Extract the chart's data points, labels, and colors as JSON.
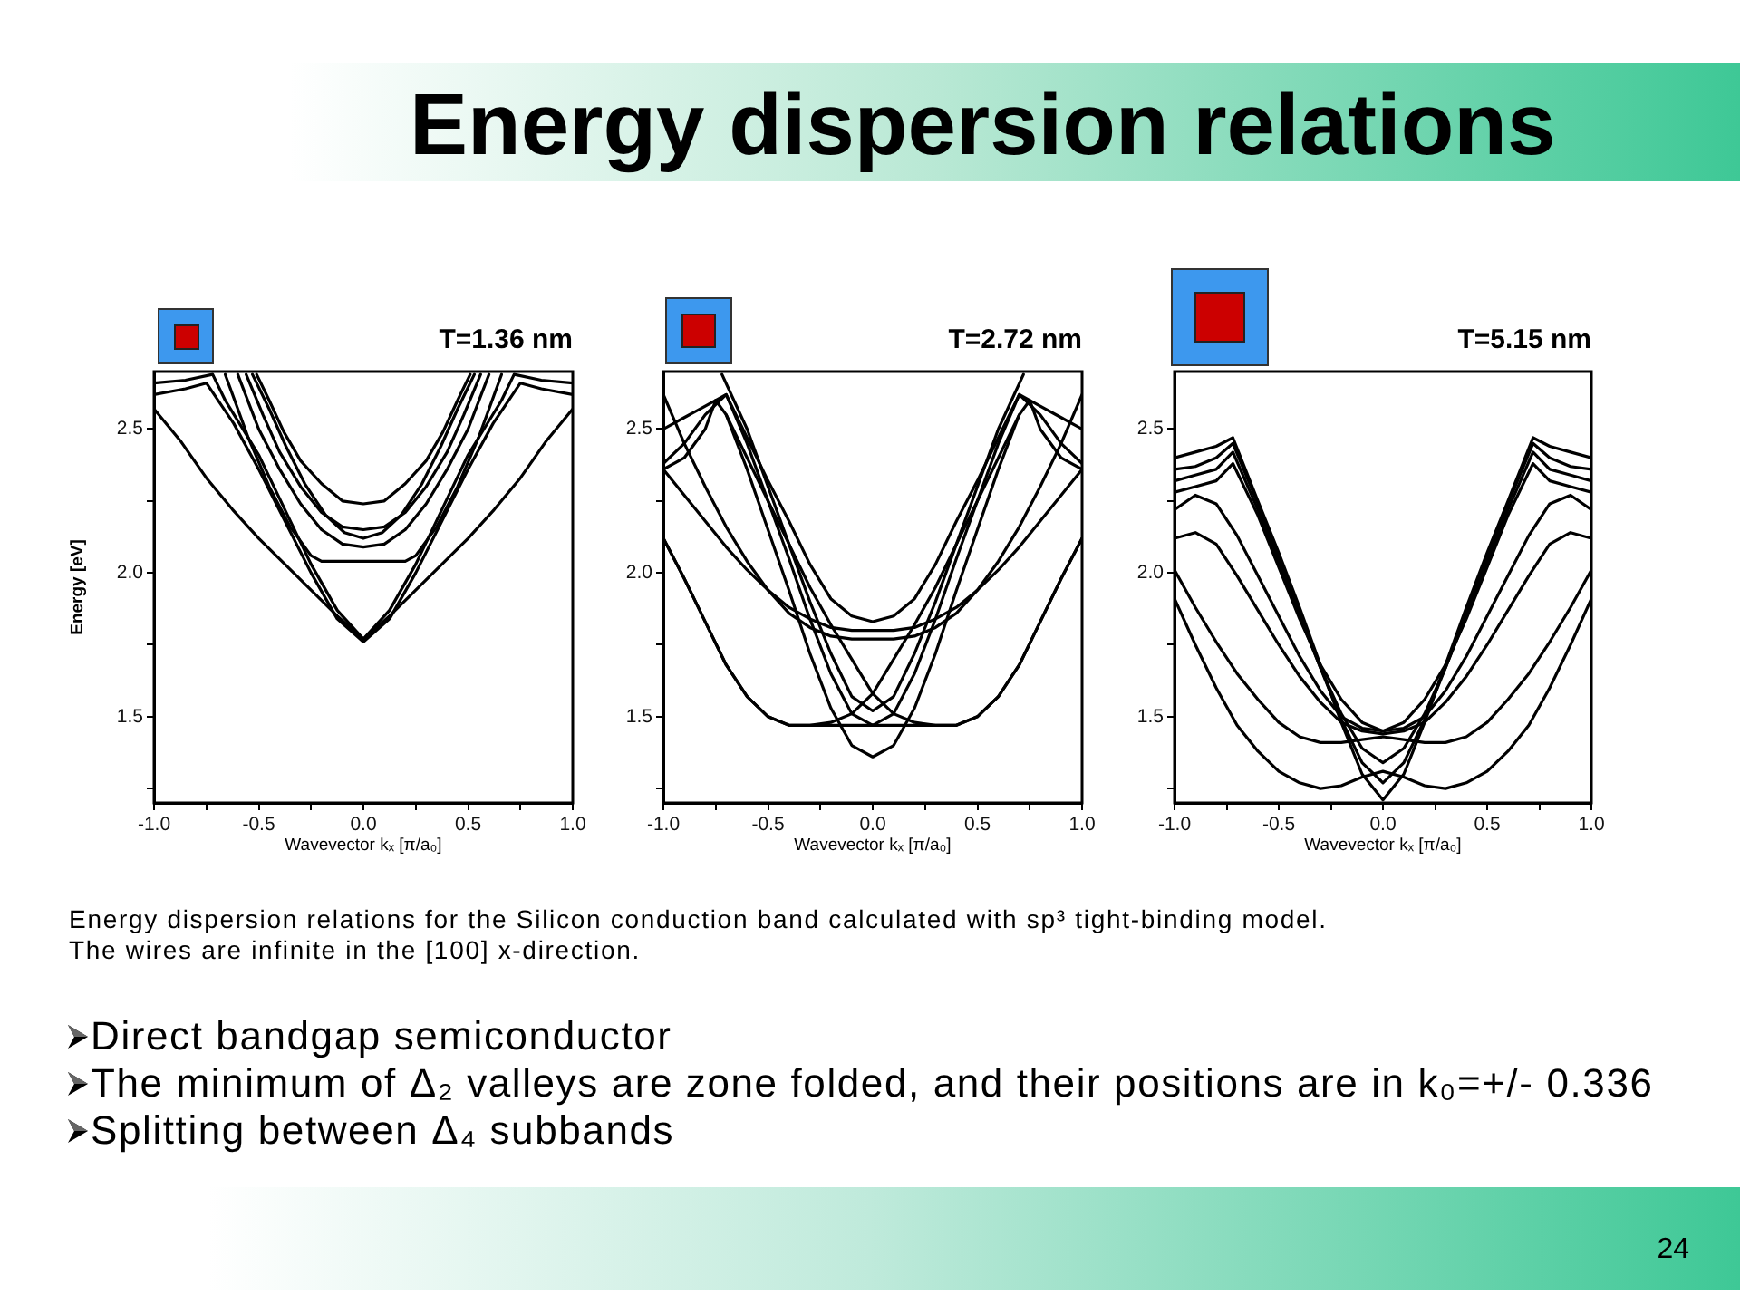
{
  "chart_data": [
    {
      "type": "line",
      "title": "T=1.36 nm",
      "xlabel": "Wavevector kₓ [π/a₀]",
      "ylabel": "Energy [eV]",
      "annotations": [
        "Energy dispersion relations",
        "Energy dispersion relations for the Silicon conduction band calculated with sp³ tight-binding model.",
        "The wires are infinite in the [100] x-direction.",
        "Direct bandgap semiconductor",
        "The minimum of Δ₂ valleys are zone folded, and their positions are in k₀=+/- 0.336",
        "Splitting between Δ₄ subbands",
        "24"
      ],
      "xlim": [
        -1,
        1
      ],
      "ylim": [
        1.2,
        2.7
      ],
      "xticks": [
        {
          "value": -1,
          "label": "-1.0"
        },
        {
          "value": -0.75,
          "label": null
        },
        {
          "value": -0.5,
          "label": "-0.5"
        },
        {
          "value": -0.25,
          "label": null
        },
        {
          "value": 0,
          "label": "0.0"
        },
        {
          "value": 0.25,
          "label": null
        },
        {
          "value": 0.5,
          "label": "0.5"
        },
        {
          "value": 0.75,
          "label": null
        },
        {
          "value": 1,
          "label": "1.0"
        }
      ],
      "yticks": [
        {
          "value": 1.25,
          "label": null
        },
        {
          "value": 1.5,
          "label": "1.5"
        },
        {
          "value": 1.75,
          "label": null
        },
        {
          "value": 2,
          "label": "2.0"
        },
        {
          "value": 2.25,
          "label": null
        },
        {
          "value": 2.5,
          "label": "2.5"
        }
      ],
      "grid": false,
      "legend": false,
      "marker": "none",
      "series": [
        {
          "color": "#000000",
          "x": [
            -1,
            -0.875,
            -0.75,
            -0.625,
            -0.5,
            -0.375,
            -0.25,
            -0.125,
            0,
            0.125,
            0.25,
            0.375,
            0.5,
            0.625,
            0.75,
            0.875,
            1
          ],
          "values": [
            2.57,
            2.46,
            2.33,
            2.22,
            2.12,
            2.03,
            1.94,
            1.85,
            1.77,
            1.85,
            1.94,
            2.03,
            2.12,
            2.22,
            2.33,
            2.46,
            2.57
          ]
        },
        {
          "color": "#000000",
          "x": [
            -1,
            -0.85,
            -0.72,
            -0.66,
            -0.5,
            -0.375,
            -0.25,
            -0.125,
            0,
            0.125,
            0.25,
            0.375,
            0.5,
            0.66,
            0.72,
            0.85,
            1
          ],
          "values": [
            2.66,
            2.67,
            2.69,
            2.6,
            2.41,
            2.22,
            2.03,
            1.87,
            1.77,
            1.87,
            2.03,
            2.22,
            2.41,
            2.6,
            2.69,
            2.67,
            2.66
          ]
        },
        {
          "color": "#000000",
          "x": [
            -1,
            -0.85,
            -0.75,
            -0.62,
            -0.5,
            -0.375,
            -0.25,
            -0.125,
            0,
            0.125,
            0.25,
            0.375,
            0.5,
            0.62,
            0.75,
            0.85,
            1
          ],
          "values": [
            2.62,
            2.64,
            2.66,
            2.52,
            2.36,
            2.18,
            2.0,
            1.84,
            1.76,
            1.84,
            2.0,
            2.18,
            2.36,
            2.52,
            2.66,
            2.64,
            2.62
          ]
        },
        {
          "color": "#000000",
          "x": [
            -0.51,
            -0.45,
            -0.38,
            -0.3,
            -0.2,
            -0.1,
            0,
            0.1,
            0.2,
            0.3,
            0.38,
            0.45,
            0.51
          ],
          "values": [
            2.69,
            2.6,
            2.49,
            2.39,
            2.31,
            2.25,
            2.24,
            2.25,
            2.31,
            2.39,
            2.49,
            2.6,
            2.69
          ]
        },
        {
          "color": "#000000",
          "x": [
            -0.56,
            -0.48,
            -0.4,
            -0.3,
            -0.2,
            -0.1,
            0,
            0.1,
            0.2,
            0.3,
            0.4,
            0.48,
            0.56
          ],
          "values": [
            2.69,
            2.55,
            2.42,
            2.3,
            2.21,
            2.16,
            2.15,
            2.16,
            2.21,
            2.3,
            2.42,
            2.55,
            2.69
          ]
        },
        {
          "color": "#000000",
          "x": [
            -0.53,
            -0.45,
            -0.37,
            -0.28,
            -0.18,
            -0.09,
            0,
            0.09,
            0.18,
            0.28,
            0.37,
            0.45,
            0.53
          ],
          "values": [
            2.69,
            2.57,
            2.44,
            2.31,
            2.2,
            2.14,
            2.12,
            2.14,
            2.2,
            2.31,
            2.44,
            2.57,
            2.69
          ]
        },
        {
          "color": "#000000",
          "x": [
            -0.6,
            -0.5,
            -0.4,
            -0.3,
            -0.2,
            -0.1,
            0,
            0.1,
            0.2,
            0.3,
            0.4,
            0.5,
            0.6
          ],
          "values": [
            2.69,
            2.5,
            2.36,
            2.24,
            2.15,
            2.1,
            2.09,
            2.1,
            2.15,
            2.24,
            2.36,
            2.5,
            2.69
          ]
        },
        {
          "color": "#000000",
          "x": [
            -0.66,
            -0.55,
            -0.45,
            -0.35,
            -0.25,
            -0.2,
            0,
            0.2,
            0.25,
            0.35,
            0.45,
            0.55,
            0.66
          ],
          "values": [
            2.69,
            2.47,
            2.3,
            2.16,
            2.06,
            2.04,
            2.04,
            2.04,
            2.06,
            2.16,
            2.3,
            2.47,
            2.69
          ]
        }
      ]
    },
    {
      "type": "line",
      "title": "T=2.72 nm",
      "xlabel": "Wavevector kₓ [π/a₀]",
      "xlim": [
        -1,
        1
      ],
      "ylim": [
        1.2,
        2.7
      ],
      "xticks": [
        {
          "value": -1,
          "label": "-1.0"
        },
        {
          "value": -0.75,
          "label": null
        },
        {
          "value": -0.5,
          "label": "-0.5"
        },
        {
          "value": -0.25,
          "label": null
        },
        {
          "value": 0,
          "label": "0.0"
        },
        {
          "value": 0.25,
          "label": null
        },
        {
          "value": 0.5,
          "label": "0.5"
        },
        {
          "value": 0.75,
          "label": null
        },
        {
          "value": 1,
          "label": "1.0"
        }
      ],
      "yticks": [
        {
          "value": 1.25,
          "label": null
        },
        {
          "value": 1.5,
          "label": "1.5"
        },
        {
          "value": 1.75,
          "label": null
        },
        {
          "value": 2,
          "label": "2.0"
        },
        {
          "value": 2.25,
          "label": null
        },
        {
          "value": 2.5,
          "label": "2.5"
        }
      ],
      "grid": false,
      "legend": false,
      "marker": "none",
      "x": [
        -1,
        -0.9,
        -0.8,
        -0.7,
        -0.6,
        -0.5,
        -0.4,
        -0.3,
        -0.2,
        -0.1,
        0,
        0.1,
        0.2,
        0.3,
        0.4,
        0.5,
        0.6,
        0.7,
        0.8,
        0.9,
        1
      ],
      "series": [
        {
          "color": "#000000",
          "values": [
            2.5,
            2.54,
            2.58,
            2.62,
            2.47,
            2.32,
            2.18,
            2.03,
            1.91,
            1.85,
            1.83,
            1.85,
            1.91,
            2.03,
            2.18,
            2.32,
            2.47,
            2.62,
            2.58,
            2.54,
            2.5
          ]
        },
        {
          "color": "#000000",
          "x": [
            -1,
            -0.9,
            -0.8,
            -0.75,
            -0.7,
            -0.6,
            -0.5,
            -0.4,
            -0.3,
            -0.2,
            -0.1,
            0,
            0.1,
            0.2,
            0.3,
            0.4,
            0.5,
            0.6,
            0.7,
            0.75,
            0.8,
            0.9,
            1
          ],
          "values": [
            2.36,
            2.4,
            2.5,
            2.6,
            2.55,
            2.36,
            2.15,
            1.94,
            1.72,
            1.53,
            1.4,
            1.36,
            1.4,
            1.53,
            1.72,
            1.94,
            2.15,
            2.36,
            2.55,
            2.6,
            2.5,
            2.4,
            2.36
          ]
        },
        {
          "color": "#000000",
          "values": [
            2.38,
            2.45,
            2.55,
            2.62,
            2.45,
            2.25,
            2.05,
            1.84,
            1.65,
            1.51,
            1.47,
            1.51,
            1.65,
            1.84,
            2.05,
            2.25,
            2.45,
            2.62,
            2.55,
            2.45,
            2.38
          ]
        },
        {
          "color": "#000000",
          "x": [
            -0.72,
            -0.6,
            -0.5,
            -0.4,
            -0.3,
            -0.2,
            -0.1,
            0,
            0.1,
            0.2,
            0.3,
            0.4,
            0.5,
            0.6,
            0.72
          ],
          "values": [
            2.69,
            2.5,
            2.3,
            2.1,
            1.9,
            1.72,
            1.57,
            1.52,
            1.57,
            1.72,
            1.9,
            2.1,
            2.3,
            2.5,
            2.69
          ]
        },
        {
          "color": "#000000",
          "x": [
            -1,
            -0.9,
            -0.8,
            -0.7,
            -0.6,
            -0.5,
            -0.4,
            0,
            0.4,
            0.5,
            0.6,
            0.7,
            0.8,
            0.9,
            1
          ],
          "values": [
            2.12,
            1.98,
            1.83,
            1.68,
            1.57,
            1.5,
            1.47,
            1.47,
            1.47,
            1.5,
            1.57,
            1.68,
            1.83,
            1.98,
            2.12
          ]
        },
        {
          "color": "#000000",
          "values": [
            2.62,
            2.45,
            2.3,
            2.16,
            2.04,
            1.94,
            1.86,
            1.81,
            1.78,
            1.77,
            1.77,
            1.77,
            1.78,
            1.81,
            1.86,
            1.94,
            2.04,
            2.16,
            2.3,
            2.45,
            2.62
          ]
        },
        {
          "color": "#000000",
          "values": [
            2.36,
            2.27,
            2.18,
            2.09,
            2.01,
            1.94,
            1.88,
            1.84,
            1.81,
            1.8,
            1.8,
            1.8,
            1.81,
            1.84,
            1.88,
            1.94,
            2.01,
            2.09,
            2.18,
            2.27,
            2.36
          ]
        },
        {
          "color": "#000000",
          "x": [
            -0.7,
            -0.6,
            -0.5,
            -0.4,
            -0.3,
            -0.2,
            -0.1,
            0,
            0.1,
            0.2,
            0.3,
            0.4,
            0.5,
            0.6,
            0.7,
            0.8,
            0.9,
            1
          ],
          "values": [
            2.55,
            2.4,
            2.25,
            2.1,
            1.95,
            1.82,
            1.7,
            1.58,
            1.51,
            1.48,
            1.47,
            1.47,
            1.5,
            1.57,
            1.68,
            1.83,
            1.98,
            2.12
          ]
        },
        {
          "color": "#000000",
          "x": [
            -1,
            -0.9,
            -0.8,
            -0.7,
            -0.6,
            -0.5,
            -0.4,
            -0.3,
            -0.2,
            -0.1,
            0,
            0.1,
            0.2,
            0.3,
            0.4,
            0.5,
            0.6,
            0.7
          ],
          "values": [
            2.12,
            1.98,
            1.83,
            1.68,
            1.57,
            1.5,
            1.47,
            1.47,
            1.48,
            1.51,
            1.58,
            1.7,
            1.82,
            1.95,
            2.1,
            2.25,
            2.4,
            2.55
          ]
        }
      ]
    },
    {
      "type": "line",
      "title": "T=5.15 nm",
      "xlabel": "Wavevector kₓ [π/a₀]",
      "xlim": [
        -1,
        1
      ],
      "ylim": [
        1.2,
        2.7
      ],
      "xticks": [
        {
          "value": -1,
          "label": "-1.0"
        },
        {
          "value": -0.75,
          "label": null
        },
        {
          "value": -0.5,
          "label": "-0.5"
        },
        {
          "value": -0.25,
          "label": null
        },
        {
          "value": 0,
          "label": "0.0"
        },
        {
          "value": 0.25,
          "label": null
        },
        {
          "value": 0.5,
          "label": "0.5"
        },
        {
          "value": 0.75,
          "label": null
        },
        {
          "value": 1,
          "label": "1.0"
        }
      ],
      "yticks": [
        {
          "value": 1.25,
          "label": null
        },
        {
          "value": 1.5,
          "label": "1.5"
        },
        {
          "value": 1.75,
          "label": null
        },
        {
          "value": 2,
          "label": "2.0"
        },
        {
          "value": 2.25,
          "label": null
        },
        {
          "value": 2.5,
          "label": "2.5"
        }
      ],
      "grid": false,
      "legend": false,
      "marker": "none",
      "x": [
        -1,
        -0.9,
        -0.8,
        -0.7,
        -0.6,
        -0.5,
        -0.4,
        -0.3,
        -0.2,
        -0.1,
        0,
        0.1,
        0.2,
        0.3,
        0.4,
        0.5,
        0.6,
        0.7,
        0.8,
        0.9,
        1
      ],
      "series": [
        {
          "color": "#000000",
          "values": [
            1.91,
            1.75,
            1.6,
            1.47,
            1.38,
            1.31,
            1.27,
            1.25,
            1.26,
            1.29,
            1.31,
            1.29,
            1.26,
            1.25,
            1.27,
            1.31,
            1.38,
            1.47,
            1.6,
            1.75,
            1.91
          ]
        },
        {
          "color": "#000000",
          "values": [
            2.01,
            1.88,
            1.76,
            1.65,
            1.56,
            1.48,
            1.43,
            1.41,
            1.41,
            1.42,
            1.43,
            1.42,
            1.41,
            1.41,
            1.43,
            1.48,
            1.56,
            1.65,
            1.76,
            1.88,
            2.01
          ]
        },
        {
          "color": "#000000",
          "values": [
            2.12,
            2.14,
            2.1,
            1.99,
            1.87,
            1.75,
            1.64,
            1.55,
            1.48,
            1.45,
            1.44,
            1.45,
            1.48,
            1.55,
            1.64,
            1.75,
            1.87,
            1.99,
            2.1,
            2.14,
            2.12
          ]
        },
        {
          "color": "#000000",
          "values": [
            2.22,
            2.27,
            2.24,
            2.13,
            1.99,
            1.85,
            1.71,
            1.59,
            1.5,
            1.46,
            1.45,
            1.46,
            1.5,
            1.59,
            1.71,
            1.85,
            1.99,
            2.13,
            2.24,
            2.27,
            2.22
          ]
        },
        {
          "color": "#000000",
          "x": [
            -1,
            -0.9,
            -0.8,
            -0.72,
            -0.6,
            -0.5,
            -0.4,
            -0.3,
            -0.2,
            -0.1,
            0,
            0.1,
            0.2,
            0.3,
            0.4,
            0.5,
            0.6,
            0.72,
            0.8,
            0.9,
            1
          ],
          "values": [
            2.4,
            2.42,
            2.44,
            2.47,
            2.25,
            2.07,
            1.88,
            1.68,
            1.48,
            1.3,
            1.21,
            1.3,
            1.48,
            1.68,
            1.88,
            2.07,
            2.25,
            2.47,
            2.44,
            2.42,
            2.4
          ]
        },
        {
          "color": "#000000",
          "x": [
            -1,
            -0.9,
            -0.8,
            -0.72,
            -0.6,
            -0.5,
            -0.4,
            -0.3,
            -0.2,
            -0.1,
            0,
            0.1,
            0.2,
            0.3,
            0.4,
            0.5,
            0.6,
            0.72,
            0.8,
            0.9,
            1
          ],
          "values": [
            2.36,
            2.37,
            2.4,
            2.45,
            2.24,
            2.05,
            1.86,
            1.67,
            1.49,
            1.34,
            1.27,
            1.34,
            1.49,
            1.67,
            1.86,
            2.05,
            2.24,
            2.45,
            2.4,
            2.37,
            2.36
          ]
        },
        {
          "color": "#000000",
          "x": [
            -1,
            -0.9,
            -0.8,
            -0.72,
            -0.6,
            -0.5,
            -0.4,
            -0.3,
            -0.2,
            -0.1,
            0,
            0.1,
            0.2,
            0.3,
            0.4,
            0.5,
            0.6,
            0.72,
            0.8,
            0.9,
            1
          ],
          "values": [
            2.32,
            2.34,
            2.36,
            2.42,
            2.22,
            2.03,
            1.85,
            1.67,
            1.51,
            1.39,
            1.34,
            1.39,
            1.51,
            1.67,
            1.85,
            2.03,
            2.22,
            2.42,
            2.36,
            2.34,
            2.32
          ]
        },
        {
          "color": "#000000",
          "x": [
            -1,
            -0.9,
            -0.8,
            -0.72,
            -0.6,
            -0.5,
            -0.4,
            -0.3,
            -0.2,
            -0.1,
            0,
            0.1,
            0.2,
            0.3,
            0.4,
            0.5,
            0.6,
            0.72,
            0.8,
            0.9,
            1
          ],
          "values": [
            2.28,
            2.3,
            2.32,
            2.38,
            2.2,
            2.02,
            1.84,
            1.68,
            1.56,
            1.48,
            1.45,
            1.48,
            1.56,
            1.68,
            1.84,
            2.02,
            2.2,
            2.38,
            2.32,
            2.3,
            2.28
          ]
        }
      ]
    }
  ]
}
